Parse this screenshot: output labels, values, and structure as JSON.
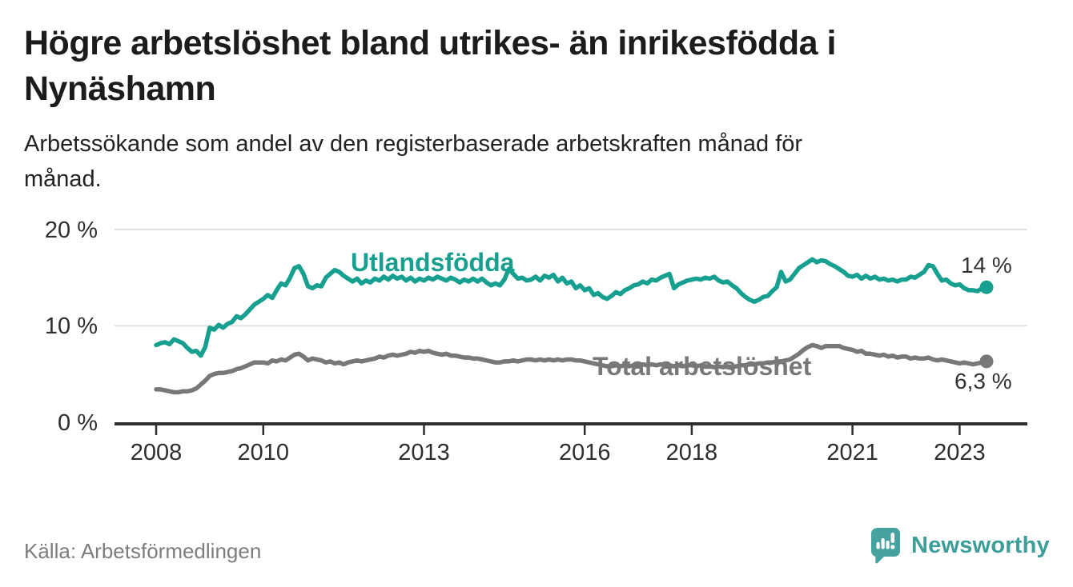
{
  "header": {
    "title_line1": "Högre arbetslöshet bland utrikes- än inrikesfödda i",
    "title_line2": "Nynäshamn",
    "subtitle_line1": "Arbetssökande som andel av den registerbaserade arbetskraften månad för",
    "subtitle_line2": "månad."
  },
  "footer": {
    "source": "Källa: Arbetsförmedlingen",
    "brand_name": "Newsworthy",
    "brand_icon": "speech-bubble-bar-chart-icon"
  },
  "colors": {
    "foreign_born_line": "#17a08f",
    "total_line": "#787878",
    "value_label_text": "#333333",
    "axis": "#2e2e2e",
    "gridline": "#e2e2e2",
    "title_text": "#1c1c1c",
    "source_text": "#7d7d7d",
    "brand_teal": "#45a29e"
  },
  "chart_data": {
    "type": "line",
    "x_start": "2008-01",
    "x_step_months": 1,
    "x_end": "2023-07",
    "ylim": [
      0,
      20
    ],
    "grid": "horizontal-only",
    "legend": "inline-labels-on-lines",
    "y_tick_values": [
      0,
      10,
      20
    ],
    "y_tick_labels": [
      "0 %",
      "10 %",
      "20 %"
    ],
    "x_tick_years": [
      2008,
      2010,
      2013,
      2016,
      2018,
      2021,
      2023
    ],
    "x_tick_labels": [
      "2008",
      "2010",
      "2013",
      "2016",
      "2018",
      "2021",
      "2023"
    ],
    "series": [
      {
        "name": "Utlandsfödda",
        "color": "#17a08f",
        "end_value_label": "14 %",
        "end_value": 14.0,
        "values": [
          8.0,
          8.2,
          8.3,
          8.1,
          8.6,
          8.4,
          8.2,
          7.7,
          7.3,
          7.4,
          6.9,
          7.8,
          9.8,
          9.6,
          10.1,
          9.8,
          10.2,
          10.4,
          11.0,
          10.8,
          11.2,
          11.7,
          12.2,
          12.5,
          12.8,
          13.2,
          12.9,
          13.7,
          14.4,
          14.2,
          15.0,
          16.0,
          16.2,
          15.4,
          14.1,
          13.9,
          14.2,
          14.1,
          15.0,
          15.4,
          15.8,
          15.6,
          15.2,
          14.9,
          14.6,
          14.9,
          14.4,
          14.7,
          14.5,
          14.9,
          14.7,
          15.1,
          14.8,
          15.2,
          14.9,
          15.1,
          14.7,
          15.0,
          14.6,
          14.9,
          14.7,
          15.0,
          14.8,
          15.1,
          14.9,
          14.7,
          15.0,
          14.8,
          14.5,
          14.8,
          14.6,
          14.9,
          14.6,
          14.9,
          14.5,
          14.2,
          14.4,
          14.2,
          14.8,
          15.9,
          15.4,
          14.9,
          15.0,
          14.7,
          14.8,
          15.1,
          14.7,
          15.2,
          15.0,
          15.3,
          14.6,
          15.0,
          14.4,
          14.6,
          13.9,
          14.2,
          13.7,
          13.9,
          13.2,
          13.4,
          13.0,
          12.8,
          13.1,
          13.5,
          13.3,
          13.7,
          13.9,
          14.2,
          14.3,
          14.6,
          14.4,
          14.8,
          14.7,
          15.0,
          15.2,
          15.4,
          13.9,
          14.3,
          14.5,
          14.7,
          14.8,
          14.9,
          14.8,
          15.0,
          14.9,
          15.1,
          14.7,
          14.5,
          14.6,
          14.2,
          13.9,
          13.4,
          13.0,
          12.7,
          12.5,
          12.7,
          13.0,
          13.1,
          13.6,
          14.0,
          15.6,
          14.6,
          14.8,
          15.4,
          16.0,
          16.3,
          16.6,
          16.9,
          16.6,
          16.8,
          16.7,
          16.4,
          16.2,
          15.9,
          15.6,
          15.2,
          15.1,
          15.3,
          14.9,
          15.2,
          14.9,
          15.1,
          14.8,
          14.9,
          14.7,
          14.8,
          14.6,
          14.8,
          14.8,
          15.1,
          15.0,
          15.3,
          15.6,
          16.3,
          16.2,
          15.4,
          14.7,
          14.8,
          14.4,
          14.2,
          14.3,
          13.9,
          13.7,
          13.7,
          13.6,
          13.9,
          14.0
        ]
      },
      {
        "name": "Total arbetslöshet",
        "color": "#787878",
        "end_value_label": "6,3 %",
        "end_value": 6.3,
        "values": [
          3.4,
          3.4,
          3.3,
          3.2,
          3.1,
          3.1,
          3.2,
          3.2,
          3.3,
          3.5,
          3.9,
          4.3,
          4.8,
          5.0,
          5.1,
          5.1,
          5.2,
          5.3,
          5.5,
          5.6,
          5.8,
          6.0,
          6.2,
          6.2,
          6.2,
          6.1,
          6.4,
          6.3,
          6.5,
          6.4,
          6.7,
          7.0,
          7.1,
          6.8,
          6.4,
          6.6,
          6.5,
          6.4,
          6.2,
          6.3,
          6.1,
          6.2,
          6.0,
          6.2,
          6.3,
          6.4,
          6.3,
          6.4,
          6.5,
          6.6,
          6.8,
          6.7,
          6.9,
          7.0,
          6.9,
          7.0,
          7.1,
          7.3,
          7.2,
          7.4,
          7.3,
          7.4,
          7.2,
          7.1,
          7.0,
          7.1,
          6.9,
          6.9,
          6.8,
          6.7,
          6.7,
          6.6,
          6.6,
          6.5,
          6.4,
          6.3,
          6.2,
          6.2,
          6.3,
          6.3,
          6.4,
          6.3,
          6.4,
          6.5,
          6.5,
          6.4,
          6.5,
          6.4,
          6.5,
          6.4,
          6.5,
          6.4,
          6.5,
          6.5,
          6.4,
          6.4,
          6.3,
          6.2,
          6.1,
          6.0,
          5.9,
          5.8,
          5.8,
          5.9,
          5.8,
          5.9,
          5.8,
          5.9,
          5.9,
          6.0,
          5.9,
          6.0,
          5.9,
          6.0,
          5.9,
          5.9,
          5.8,
          5.9,
          5.8,
          5.9,
          5.9,
          5.8,
          5.9,
          5.8,
          5.8,
          5.7,
          5.8,
          5.7,
          5.8,
          5.7,
          5.8,
          5.9,
          5.9,
          6.0,
          6.0,
          6.1,
          6.1,
          6.2,
          6.2,
          6.3,
          6.3,
          6.4,
          6.5,
          6.8,
          7.1,
          7.5,
          7.8,
          8.0,
          7.9,
          7.7,
          7.9,
          7.9,
          7.9,
          7.9,
          7.7,
          7.6,
          7.5,
          7.3,
          7.4,
          7.1,
          7.1,
          7.0,
          6.9,
          7.0,
          6.8,
          6.9,
          6.7,
          6.8,
          6.8,
          6.6,
          6.7,
          6.6,
          6.6,
          6.7,
          6.5,
          6.4,
          6.5,
          6.4,
          6.3,
          6.2,
          6.1,
          6.2,
          6.1,
          6.0,
          6.1,
          6.2,
          6.3
        ]
      }
    ]
  }
}
